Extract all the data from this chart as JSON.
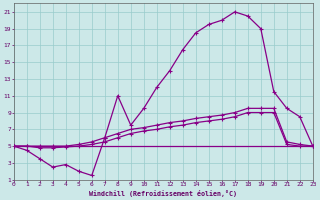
{
  "xlabel": "Windchill (Refroidissement éolien,°C)",
  "bg_color": "#cce8e8",
  "grid_color": "#99cccc",
  "line_color": "#880088",
  "x_ticks": [
    0,
    1,
    2,
    3,
    4,
    5,
    6,
    7,
    8,
    9,
    10,
    11,
    12,
    13,
    14,
    15,
    16,
    17,
    18,
    19,
    20,
    21,
    22,
    23
  ],
  "y_ticks": [
    1,
    3,
    5,
    7,
    9,
    11,
    13,
    15,
    17,
    19,
    21
  ],
  "xlim": [
    0,
    23
  ],
  "ylim": [
    1,
    22
  ],
  "series1_x": [
    0,
    1,
    2,
    3,
    4,
    5,
    6,
    7,
    8,
    9,
    10,
    11,
    12,
    13,
    14,
    15,
    16,
    17,
    18,
    19,
    20,
    21,
    22,
    23
  ],
  "series1_y": [
    5,
    4.5,
    3.5,
    2.5,
    2.8,
    2.0,
    1.5,
    6.0,
    11.0,
    7.5,
    9.5,
    12.0,
    14.0,
    16.5,
    18.5,
    19.5,
    20.0,
    21.0,
    20.5,
    19.0,
    11.5,
    9.5,
    8.5,
    5.0
  ],
  "series2_x": [
    0,
    1,
    2,
    3,
    4,
    5,
    6,
    7,
    8,
    9,
    10,
    11,
    12,
    13,
    14,
    15,
    16,
    17,
    18,
    19,
    20,
    21,
    22,
    23
  ],
  "series2_y": [
    5.0,
    5.0,
    5.0,
    5.0,
    5.0,
    5.2,
    5.5,
    6.0,
    6.5,
    7.0,
    7.2,
    7.5,
    7.8,
    8.0,
    8.3,
    8.5,
    8.7,
    9.0,
    9.5,
    9.5,
    9.5,
    5.5,
    5.2,
    5.0
  ],
  "series3_x": [
    0,
    1,
    2,
    3,
    4,
    5,
    6,
    7,
    8,
    9,
    10,
    11,
    12,
    13,
    14,
    15,
    16,
    17,
    18,
    19,
    20,
    21,
    22,
    23
  ],
  "series3_y": [
    5.0,
    5.0,
    4.8,
    4.8,
    4.9,
    5.0,
    5.2,
    5.5,
    6.0,
    6.5,
    6.8,
    7.0,
    7.3,
    7.5,
    7.8,
    8.0,
    8.2,
    8.5,
    9.0,
    9.0,
    9.0,
    5.2,
    5.0,
    5.0
  ],
  "series4_x": [
    0,
    23
  ],
  "series4_y": [
    5.0,
    5.0
  ]
}
